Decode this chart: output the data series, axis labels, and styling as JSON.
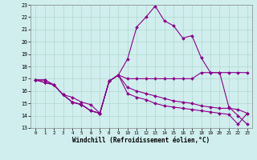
{
  "xlabel": "Windchill (Refroidissement éolien,°C)",
  "xlim": [
    -0.5,
    23.5
  ],
  "ylim": [
    13,
    23
  ],
  "xticks": [
    0,
    1,
    2,
    3,
    4,
    5,
    6,
    7,
    8,
    9,
    10,
    11,
    12,
    13,
    14,
    15,
    16,
    17,
    18,
    19,
    20,
    21,
    22,
    23
  ],
  "yticks": [
    13,
    14,
    15,
    16,
    17,
    18,
    19,
    20,
    21,
    22,
    23
  ],
  "line_color": "#8B008B",
  "bg_color": "#d0eeee",
  "grid_color": "#b0d8cc",
  "lines": [
    {
      "x": [
        0,
        1,
        2,
        3,
        4,
        5,
        6,
        7,
        8,
        9,
        10,
        11,
        12,
        13,
        14,
        15,
        16,
        17,
        18,
        19,
        20,
        21,
        22,
        23
      ],
      "y": [
        16.9,
        16.9,
        16.5,
        15.7,
        15.1,
        14.9,
        14.4,
        14.2,
        16.8,
        17.3,
        18.6,
        21.2,
        22.0,
        22.9,
        21.7,
        21.3,
        20.3,
        20.5,
        18.7,
        17.5,
        17.5,
        14.7,
        14.0,
        13.3
      ]
    },
    {
      "x": [
        0,
        1,
        2,
        3,
        4,
        5,
        6,
        7,
        8,
        9,
        10,
        11,
        12,
        13,
        14,
        15,
        16,
        17,
        18,
        19,
        20,
        21,
        22,
        23
      ],
      "y": [
        16.9,
        16.9,
        16.5,
        15.7,
        15.1,
        14.9,
        14.4,
        14.2,
        16.8,
        17.3,
        17.0,
        17.0,
        17.0,
        17.0,
        17.0,
        17.0,
        17.0,
        17.0,
        17.5,
        17.5,
        17.5,
        17.5,
        17.5,
        17.5
      ]
    },
    {
      "x": [
        0,
        1,
        2,
        3,
        4,
        5,
        6,
        7,
        8,
        9,
        10,
        11,
        12,
        13,
        14,
        15,
        16,
        17,
        18,
        19,
        20,
        21,
        22,
        23
      ],
      "y": [
        16.9,
        16.7,
        16.5,
        15.7,
        15.5,
        15.1,
        14.9,
        14.2,
        16.8,
        17.3,
        16.3,
        16.0,
        15.8,
        15.6,
        15.4,
        15.2,
        15.1,
        15.0,
        14.8,
        14.7,
        14.6,
        14.6,
        14.5,
        14.2
      ]
    },
    {
      "x": [
        0,
        1,
        2,
        3,
        4,
        5,
        6,
        7,
        8,
        9,
        10,
        11,
        12,
        13,
        14,
        15,
        16,
        17,
        18,
        19,
        20,
        21,
        22,
        23
      ],
      "y": [
        16.9,
        16.7,
        16.5,
        15.7,
        15.1,
        14.9,
        14.4,
        14.2,
        16.8,
        17.3,
        15.8,
        15.5,
        15.3,
        15.0,
        14.8,
        14.7,
        14.6,
        14.5,
        14.4,
        14.3,
        14.2,
        14.1,
        13.3,
        14.2
      ]
    }
  ]
}
